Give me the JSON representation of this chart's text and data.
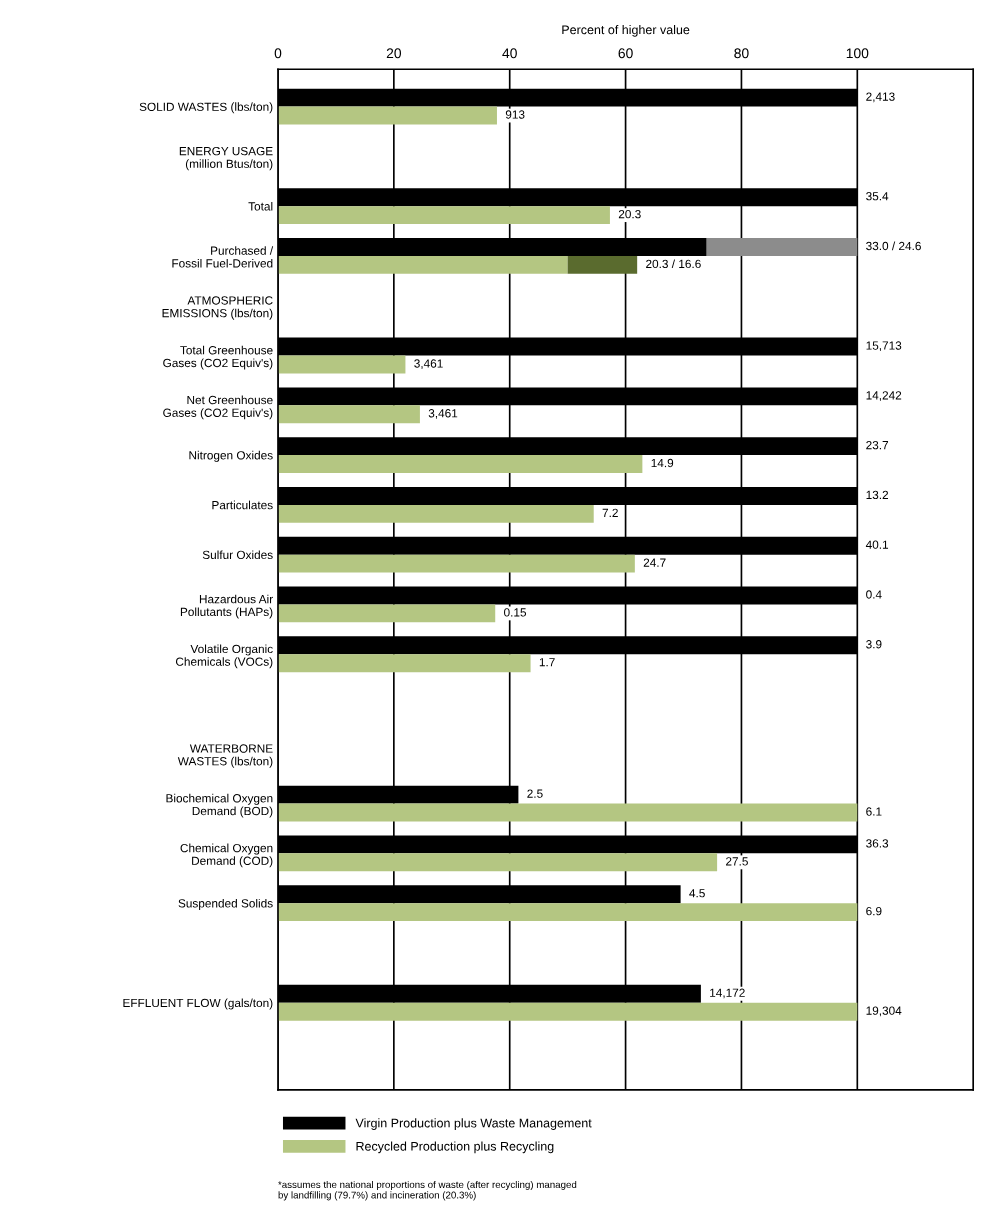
{
  "chart_data": {
    "type": "bar",
    "orientation": "horizontal",
    "xlabel": "Percent of higher value",
    "categories": [
      "SOLID WASTES (lbs/ton)",
      "ENERGY USAGE\n(million Btus/ton)",
      "Total",
      "Purchased /\nFossil Fuel-Derived",
      "ATMOSPHERIC\nEMISSIONS (lbs/ton)",
      "Total Greenhouse\nGases (CO2 Equiv's)",
      "Net Greenhouse\nGases (CO2 Equiv's)",
      "Nitrogen Oxides",
      "Particulates",
      "Sulfur Oxides",
      "Hazardous Air\nPollutants (HAPs)",
      "Volatile Organic\nChemicals (VOCs)",
      null,
      "WATERBORNE\nWASTES (lbs/ton)",
      "Biochemical Oxygen\nDemand (BOD)",
      "Chemical Oxygen\nDemand (COD)",
      "Suspended Solids",
      null,
      "EFFLUENT FLOW (gals/ton)",
      null
    ],
    "series": [
      {
        "name": "Virgin Production plus Waste Management",
        "color": "#000000",
        "values": [
          100,
          null,
          100,
          74,
          null,
          100,
          100,
          100,
          100,
          100,
          100,
          100,
          null,
          null,
          41.5,
          100,
          69.5,
          null,
          73,
          null
        ]
      },
      {
        "name": "Recycled Production plus Recycling",
        "color": "#b4c682",
        "values": [
          37.8,
          null,
          57.3,
          50,
          null,
          22,
          24.5,
          62.9,
          54.5,
          61.6,
          37.5,
          43.6,
          null,
          null,
          100,
          75.8,
          100,
          null,
          100,
          null
        ]
      },
      {
        "color": "#8c8c8c",
        "values": [
          null,
          null,
          null,
          26,
          null,
          null,
          null,
          null,
          null,
          null,
          null,
          null,
          null,
          null,
          null,
          null,
          null,
          null,
          null,
          null
        ],
        "base": [
          null,
          null,
          null,
          74,
          null,
          null,
          null,
          null,
          null,
          null,
          null,
          null,
          null,
          null,
          null,
          null,
          null,
          null,
          null,
          null
        ]
      },
      {
        "color": "#5a6b2e",
        "values": [
          null,
          null,
          null,
          12,
          null,
          null,
          null,
          null,
          null,
          null,
          null,
          null,
          null,
          null,
          null,
          null,
          null,
          null,
          null,
          null
        ],
        "base": [
          null,
          null,
          null,
          50,
          null,
          null,
          null,
          null,
          null,
          null,
          null,
          null,
          null,
          null,
          null,
          null,
          null,
          null,
          null,
          null
        ]
      }
    ],
    "xlim": [
      0,
      120
    ],
    "xticks": [
      0,
      20,
      40,
      60,
      80,
      100
    ],
    "grid": "x",
    "legend": "bottom",
    "annotations": [
      {
        "text": "2,413",
        "x": 100,
        "y": "SOLID WASTES (lbs/ton)"
      },
      {
        "text": "913",
        "x": 37.8,
        "y": "SOLID WASTES (lbs/ton)"
      },
      {
        "text": "35.4",
        "x": 100,
        "y": "Total"
      },
      {
        "text": "20.3",
        "x": 57.3,
        "y": "Total"
      },
      {
        "text": "33.0 / 24.6",
        "x": 100,
        "y": "Purchased /\nFossil Fuel-Derived"
      },
      {
        "text": "20.3 / 16.6",
        "x": 62,
        "y": "Purchased /\nFossil Fuel-Derived"
      },
      {
        "text": "15,713",
        "x": 100,
        "y": "Total Greenhouse\nGases (CO2 Equiv's)"
      },
      {
        "text": "3,461",
        "x": 22,
        "y": "Total Greenhouse\nGases (CO2 Equiv's)"
      },
      {
        "text": "14,242",
        "x": 100,
        "y": "Net Greenhouse\nGases (CO2 Equiv's)"
      },
      {
        "text": "3,461",
        "x": 24.5,
        "y": "Net Greenhouse\nGases (CO2 Equiv's)"
      },
      {
        "text": "23.7",
        "x": 100,
        "y": "Nitrogen Oxides"
      },
      {
        "text": "14.9",
        "x": 62.9,
        "y": "Nitrogen Oxides"
      },
      {
        "text": "13.2",
        "x": 100,
        "y": "Particulates"
      },
      {
        "text": "7.2",
        "x": 54.5,
        "y": "Particulates"
      },
      {
        "text": "40.1",
        "x": 100,
        "y": "Sulfur Oxides"
      },
      {
        "text": "24.7",
        "x": 61.6,
        "y": "Sulfur Oxides"
      },
      {
        "text": "0.4",
        "x": 100,
        "y": "Hazardous Air\nPollutants (HAPs)"
      },
      {
        "text": "0.15",
        "x": 37.5,
        "y": "Hazardous Air\nPollutants (HAPs)"
      },
      {
        "text": "3.9",
        "x": 100,
        "y": "Volatile Organic\nChemicals (VOCs)"
      },
      {
        "text": "1.7",
        "x": 43.6,
        "y": "Volatile Organic\nChemicals (VOCs)"
      },
      {
        "text": "2.5",
        "x": 41.5,
        "y": "Biochemical Oxygen\nDemand (BOD)"
      },
      {
        "text": "6.1",
        "x": 100,
        "y": "Biochemical Oxygen\nDemand (BOD)"
      },
      {
        "text": "36.3",
        "x": 100,
        "y": "Chemical Oxygen\nDemand (COD)"
      },
      {
        "text": "27.5",
        "x": 75.8,
        "y": "Chemical Oxygen\nDemand (COD)"
      },
      {
        "text": "4.5",
        "x": 69.5,
        "y": "Suspended Solids"
      },
      {
        "text": "6.9",
        "x": 100,
        "y": "Suspended Solids"
      },
      {
        "text": "14,172",
        "x": 73,
        "y": "EFFLUENT FLOW (gals/ton)"
      },
      {
        "text": "19,304",
        "x": 100,
        "y": "EFFLUENT FLOW (gals/ton)"
      },
      "*assumes the national proportions of waste (after recycling) managed\nby landfilling (79.7%) and incineration (20.3%)"
    ]
  }
}
